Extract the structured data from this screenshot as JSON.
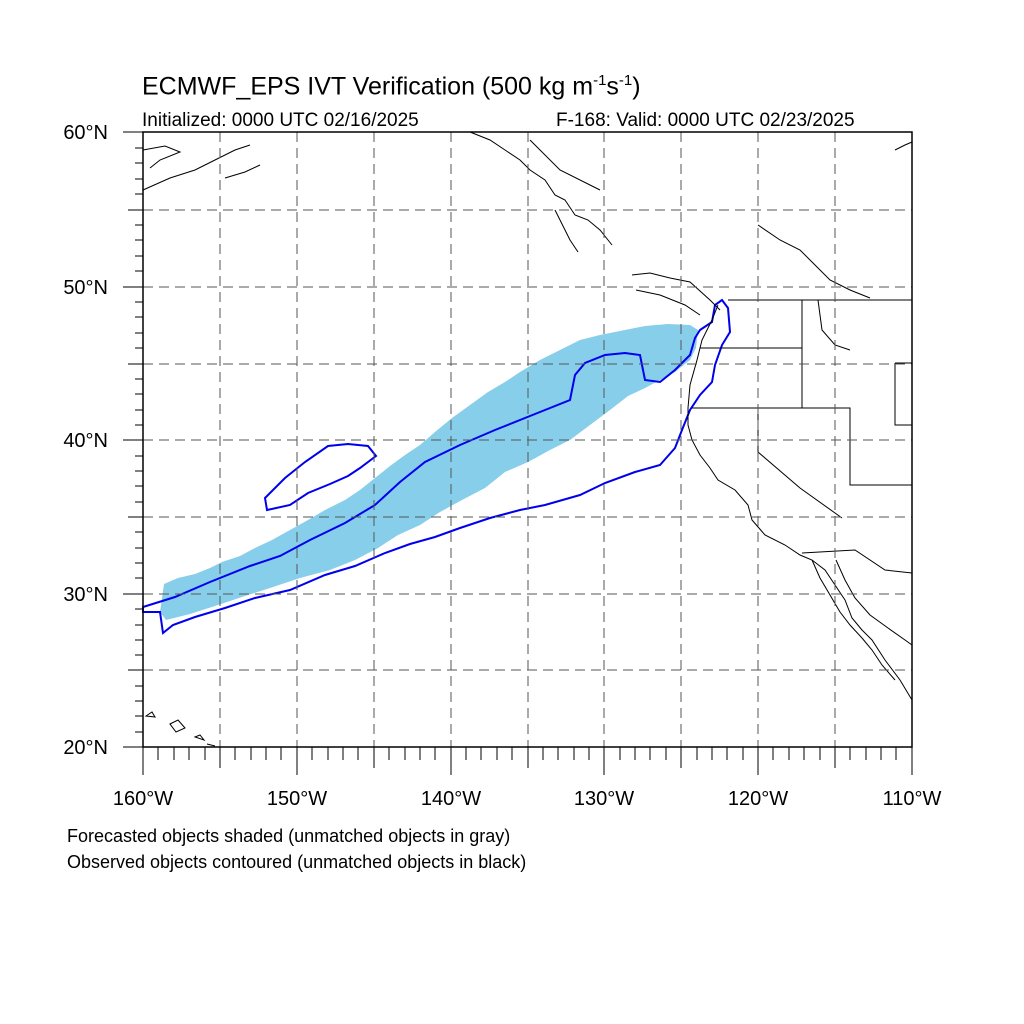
{
  "title": {
    "prefix": "ECMWF_EPS IVT Verification (500 kg m",
    "exp1": "-1",
    "middle": "s",
    "exp2": "-1",
    "suffix": ")"
  },
  "initialized": "Initialized: 0000 UTC 02/16/2025",
  "valid": "F-168: Valid: 0000 UTC 02/23/2025",
  "lat_labels": [
    "60°N",
    "50°N",
    "40°N",
    "30°N",
    "20°N"
  ],
  "lon_labels": [
    "160°W",
    "150°W",
    "140°W",
    "130°W",
    "120°W",
    "110°W"
  ],
  "notes": {
    "forecast": "Forecasted objects shaded (unmatched objects in gray)",
    "observed": "Observed objects contoured (unmatched objects in black)"
  },
  "colors": {
    "forecast_fill": "#87ceeb",
    "observed_contour": "#0000ee",
    "coastline": "#000000",
    "gridline": "#555555"
  }
}
